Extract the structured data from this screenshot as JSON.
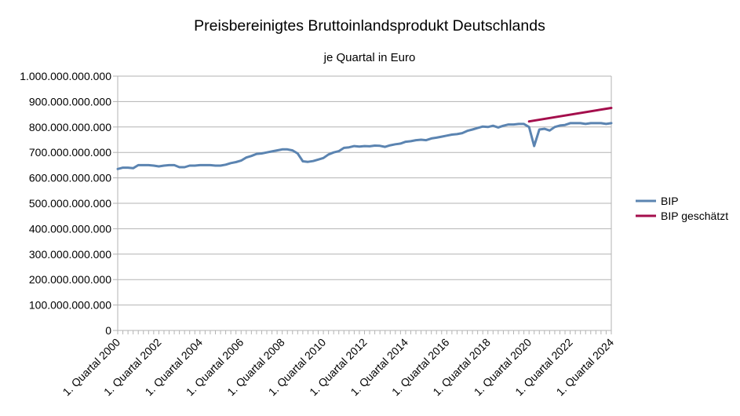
{
  "chart_data": {
    "type": "line",
    "title": "Preisbereinigtes Bruttoinlandsprodukt Deutschlands",
    "subtitle": "je Quartal in Euro",
    "xlabel": "",
    "ylabel": "",
    "ylim": [
      0,
      1000000000000
    ],
    "y_ticks": [
      "0",
      "100.000.000.000",
      "200.000.000.000",
      "300.000.000.000",
      "400.000.000.000",
      "500.000.000.000",
      "600.000.000.000",
      "700.000.000.000",
      "800.000.000.000",
      "900.000.000.000",
      "1.000.000.000.000"
    ],
    "x_tick_labels": [
      "1. Quartal 2000",
      "1. Quartal 2002",
      "1. Quartal 2004",
      "1. Quartal 2006",
      "1. Quartal 2008",
      "1. Quartal 2010",
      "1. Quartal 2012",
      "1. Quartal 2014",
      "1. Quartal 2016",
      "1. Quartal 2018",
      "1. Quartal 2020",
      "1. Quartal 2022",
      "1. Quartal 2024"
    ],
    "x_start": "1. Quartal 2000",
    "x_end": "1. Quartal 2024",
    "grid": true,
    "legend_position": "right",
    "series": [
      {
        "name": "BIP",
        "color": "#5b84b1",
        "start": "1. Quartal 2000",
        "values": [
          635,
          640,
          640,
          638,
          650,
          650,
          650,
          648,
          645,
          648,
          650,
          650,
          642,
          642,
          648,
          648,
          650,
          650,
          650,
          648,
          648,
          652,
          658,
          662,
          668,
          680,
          686,
          694,
          696,
          700,
          704,
          708,
          712,
          712,
          708,
          696,
          665,
          663,
          666,
          672,
          678,
          692,
          700,
          705,
          718,
          720,
          725,
          723,
          725,
          724,
          727,
          726,
          722,
          728,
          732,
          735,
          742,
          744,
          748,
          750,
          748,
          755,
          758,
          762,
          766,
          770,
          772,
          776,
          785,
          790,
          796,
          802,
          800,
          805,
          798,
          805,
          810,
          810,
          812,
          812,
          800,
          725,
          790,
          793,
          786,
          800,
          806,
          808,
          815,
          815,
          815,
          812,
          815,
          815,
          815,
          812,
          815
        ]
      },
      {
        "name": "BIP geschätzt",
        "color": "#a40e4c",
        "start": "1. Quartal 2020",
        "values": [
          822,
          875
        ],
        "end": "1. Quartal 2024"
      }
    ]
  }
}
